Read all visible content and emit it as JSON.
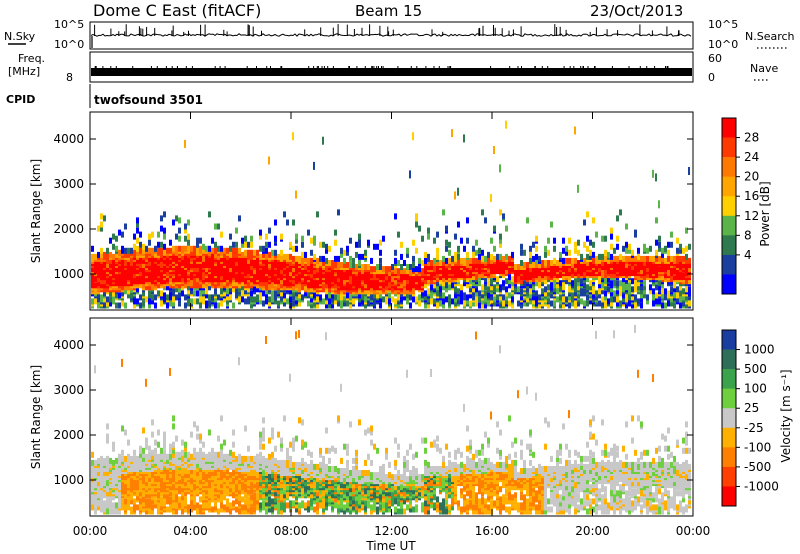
{
  "header": {
    "title": "Dome C East (fitACF)",
    "beam": "Beam 15",
    "date": "23/Oct/2013"
  },
  "strips": {
    "nsky_label": "N.Sky",
    "nsky_ticks": [
      "10^5",
      "10^0"
    ],
    "nsearch_label": "N.Search",
    "nsearch_ticks": [
      "10^5",
      "10^0"
    ],
    "freq_label": "Freq.",
    "freq_unit": "[MHz]",
    "freq_ticks": [
      "8"
    ],
    "nave_label": "Nave",
    "nave_ticks": [
      "60",
      "0"
    ],
    "cpid_label": "CPID",
    "cpid_value": "twofsound 3501"
  },
  "chart_data": [
    {
      "type": "heatmap",
      "name": "power-panel",
      "ylabel": "Slant Range [km]",
      "yticks": [
        1000,
        2000,
        3000,
        4000
      ],
      "ylim": [
        200,
        4600
      ],
      "xticks": [
        "00:00",
        "04:00",
        "08:00",
        "12:00",
        "16:00",
        "20:00",
        "00:00"
      ],
      "colorbar": {
        "label": "Power [dB]",
        "ticks": [
          "28",
          "24",
          "20",
          "16",
          "12",
          "8",
          "4"
        ],
        "colors": [
          "#ff0000",
          "#ff3a00",
          "#ff7800",
          "#ffa500",
          "#ffd000",
          "#5ab44a",
          "#2e7a4e",
          "#1a3f9e",
          "#0000ff"
        ]
      },
      "main_band_km": [
        600,
        1500
      ]
    },
    {
      "type": "heatmap",
      "name": "velocity-panel",
      "ylabel": "Slant Range [km]",
      "yticks": [
        1000,
        2000,
        3000,
        4000
      ],
      "ylim": [
        200,
        4600
      ],
      "xticks": [
        "00:00",
        "04:00",
        "08:00",
        "12:00",
        "16:00",
        "20:00",
        "00:00"
      ],
      "xlabel": "Time UT",
      "colorbar": {
        "label": "Velocity [m s⁻¹]",
        "ticks": [
          "1000",
          "500",
          "100",
          "25",
          "-25",
          "-100",
          "-500",
          "-1000"
        ],
        "colors": [
          "#1a3ea0",
          "#2e6f5a",
          "#3aa34c",
          "#6fd03f",
          "#c8c8c8",
          "#ffb000",
          "#ff8000",
          "#ff4000",
          "#ff0000"
        ]
      },
      "main_band_km": [
        600,
        1500
      ]
    }
  ]
}
